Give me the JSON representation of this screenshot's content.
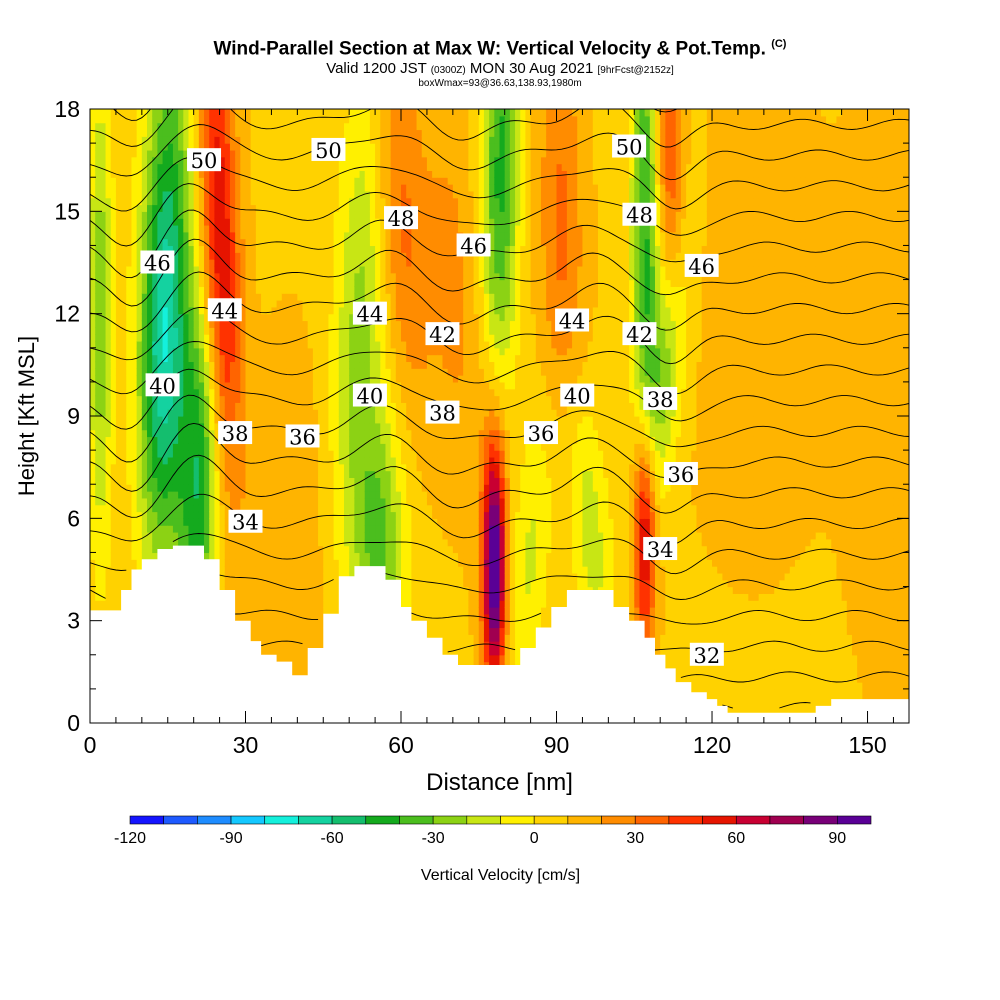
{
  "header": {
    "title": "Wind-Parallel Section at Max W: Vertical Velocity & Pot.Temp.",
    "copyright": "(C)",
    "valid_prefix": "Valid 1200 JST",
    "valid_utc": "(0300Z)",
    "valid_date": "MON 30 Aug 2021",
    "forecast": "[9hrFcst@2152z]",
    "box_info": "boxWmax=93@36.63,138.93,1980m"
  },
  "chart_data": {
    "type": "heatmap",
    "title": "Wind-Parallel Section at Max W: Vertical Velocity & Pot.Temp.",
    "xlabel": "Distance [nm]",
    "ylabel": "Height [Kft MSL]",
    "xlim": [
      0,
      158
    ],
    "ylim": [
      0,
      18
    ],
    "x_ticks": [
      0,
      30,
      60,
      90,
      120,
      150
    ],
    "y_ticks": [
      0,
      3,
      6,
      9,
      12,
      15,
      18
    ],
    "colorbar": {
      "label": "Vertical Velocity [cm/s]",
      "range": [
        -120,
        100
      ],
      "tick_values": [
        -120,
        -90,
        -60,
        -30,
        0,
        30,
        60,
        90
      ],
      "colors": [
        "#1414ff",
        "#1e5aff",
        "#1e8cff",
        "#14c8ff",
        "#14f0dc",
        "#14d2a0",
        "#14be6e",
        "#14aa1e",
        "#4bbe1e",
        "#8cd214",
        "#c8e614",
        "#fff000",
        "#ffd200",
        "#ffb400",
        "#ff8c00",
        "#ff6400",
        "#ff3200",
        "#e61400",
        "#c80032",
        "#a00050",
        "#780078",
        "#5a0096"
      ]
    },
    "updraft_cores_cm_s": [
      {
        "x": 25,
        "y": 15,
        "w": 60
      },
      {
        "x": 78,
        "y": 4.5,
        "w": 93
      },
      {
        "x": 107,
        "y": 5.8,
        "w": 70
      }
    ],
    "terrain_kft": {
      "x": [
        0,
        3,
        6,
        8,
        10,
        13,
        16,
        19,
        22,
        25,
        28,
        31,
        33,
        36,
        39,
        42,
        45,
        48,
        51,
        54,
        57,
        60,
        62,
        65,
        68,
        71,
        74,
        77,
        80,
        83,
        86,
        89,
        92,
        95,
        98,
        101,
        104,
        107,
        109,
        111,
        113,
        116,
        119,
        121,
        123,
        125,
        130,
        136,
        140,
        143,
        146,
        150,
        155,
        158
      ],
      "height": [
        3.3,
        3.3,
        3.9,
        4.5,
        4.8,
        5.1,
        5.2,
        5.2,
        4.8,
        3.9,
        3.0,
        2.4,
        2.0,
        1.8,
        1.4,
        2.2,
        3.2,
        4.3,
        4.6,
        4.6,
        4.2,
        3.4,
        3.0,
        2.5,
        2.0,
        1.7,
        1.7,
        1.7,
        1.7,
        2.2,
        2.8,
        3.4,
        3.9,
        3.9,
        3.9,
        3.4,
        3.0,
        2.5,
        2.0,
        1.6,
        1.2,
        0.9,
        0.7,
        0.5,
        0.3,
        0.3,
        0.3,
        0.3,
        0.5,
        0.7,
        0.7,
        0.7,
        0.7,
        0.7
      ]
    },
    "theta_contour_labels": [
      {
        "text": "50",
        "x": 22,
        "y": 16.5
      },
      {
        "text": "50",
        "x": 46,
        "y": 16.8
      },
      {
        "text": "50",
        "x": 104,
        "y": 16.9
      },
      {
        "text": "48",
        "x": 60,
        "y": 14.8
      },
      {
        "text": "48",
        "x": 106,
        "y": 14.9
      },
      {
        "text": "46",
        "x": 13,
        "y": 13.5
      },
      {
        "text": "46",
        "x": 74,
        "y": 14.0
      },
      {
        "text": "46",
        "x": 118,
        "y": 13.4
      },
      {
        "text": "44",
        "x": 26,
        "y": 12.1
      },
      {
        "text": "44",
        "x": 54,
        "y": 12.0
      },
      {
        "text": "44",
        "x": 93,
        "y": 11.8
      },
      {
        "text": "42",
        "x": 68,
        "y": 11.4
      },
      {
        "text": "42",
        "x": 106,
        "y": 11.4
      },
      {
        "text": "40",
        "x": 14,
        "y": 9.9
      },
      {
        "text": "40",
        "x": 54,
        "y": 9.6
      },
      {
        "text": "40",
        "x": 94,
        "y": 9.6
      },
      {
        "text": "38",
        "x": 28,
        "y": 8.5
      },
      {
        "text": "38",
        "x": 68,
        "y": 9.1
      },
      {
        "text": "38",
        "x": 110,
        "y": 9.5
      },
      {
        "text": "36",
        "x": 41,
        "y": 8.4
      },
      {
        "text": "36",
        "x": 87,
        "y": 8.5
      },
      {
        "text": "36",
        "x": 114,
        "y": 7.3
      },
      {
        "text": "34",
        "x": 30,
        "y": 5.9
      },
      {
        "text": "34",
        "x": 110,
        "y": 5.1
      },
      {
        "text": "32",
        "x": 119,
        "y": 2.0
      }
    ]
  }
}
